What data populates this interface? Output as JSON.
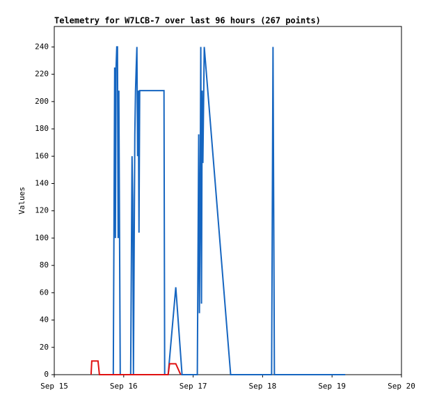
{
  "chart_data": {
    "type": "line",
    "title": "Telemetry for W7LCB-7 over last 96 hours (267 points)",
    "y_label": "Values",
    "xlim": [
      15,
      20
    ],
    "xticks": [
      {
        "value": 15,
        "label": "Sep 15"
      },
      {
        "value": 16,
        "label": "Sep 16"
      },
      {
        "value": 17,
        "label": "Sep 17"
      },
      {
        "value": 18,
        "label": "Sep 18"
      },
      {
        "value": 19,
        "label": "Sep 19"
      },
      {
        "value": 20,
        "label": "Sep 20"
      }
    ],
    "ylim": [
      0,
      255
    ],
    "yticks": [
      0,
      20,
      40,
      60,
      80,
      100,
      120,
      140,
      160,
      180,
      200,
      220,
      240
    ],
    "series": [
      {
        "color": "#1565c0",
        "x": [
          15.85,
          15.86,
          15.87,
          15.88,
          15.89,
          15.9,
          15.91,
          15.92,
          15.93,
          15.94,
          15.95,
          16.1,
          16.11,
          16.12,
          16.13,
          16.14,
          16.15,
          16.16,
          16.17,
          16.18,
          16.19,
          16.2,
          16.21,
          16.22,
          16.23,
          16.58,
          16.59,
          16.64,
          16.75,
          16.84,
          17.06,
          17.07,
          17.08,
          17.09,
          17.1,
          17.11,
          17.12,
          17.13,
          17.14,
          17.16,
          17.54,
          18.13,
          18.14,
          18.15,
          18.16,
          18.17,
          19.19
        ],
        "values": [
          0,
          112,
          225,
          100,
          225,
          240,
          240,
          100,
          208,
          104,
          0,
          0,
          80,
          160,
          128,
          0,
          88,
          176,
          208,
          225,
          240,
          160,
          208,
          104,
          208,
          208,
          0,
          0,
          64,
          0,
          0,
          88,
          176,
          45,
          120,
          240,
          52,
          208,
          155,
          240,
          0,
          0,
          120,
          240,
          120,
          0,
          0
        ]
      },
      {
        "color": "#e01010",
        "x": [
          15.53,
          15.54,
          15.63,
          15.65,
          16.64,
          16.66,
          16.75,
          16.82
        ],
        "values": [
          0,
          10,
          10,
          0,
          0,
          8,
          8,
          0
        ]
      }
    ]
  }
}
